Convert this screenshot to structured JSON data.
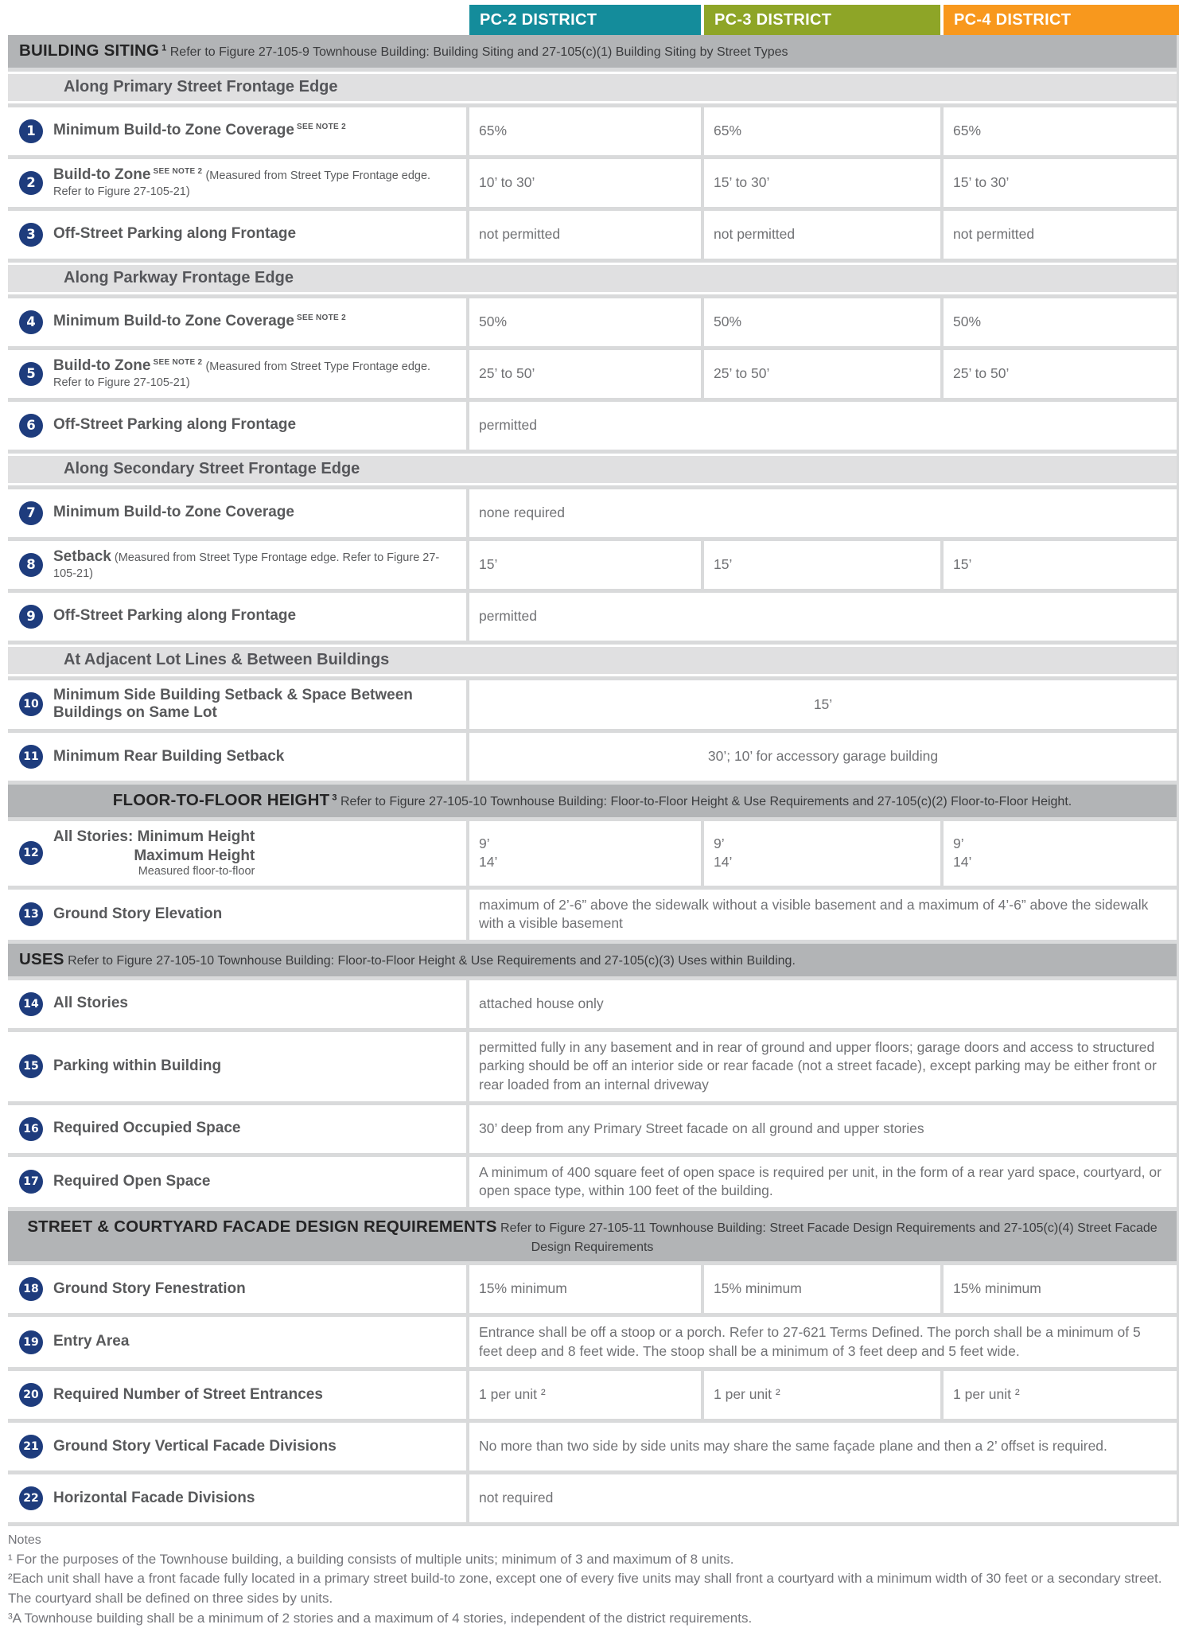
{
  "districts": [
    {
      "label": "PC-2 DISTRICT",
      "color": "#148C9B"
    },
    {
      "label": "PC-3 DISTRICT",
      "color": "#8EA527"
    },
    {
      "label": "PC-4 DISTRICT",
      "color": "#F8981D"
    }
  ],
  "badge_color": "#1E3C7D",
  "sections": [
    {
      "title": "BUILDING SITING",
      "sup": "1",
      "desc": "Refer to Figure 27-105-9 Townhouse Building: Building Siting and 27-105(c)(1) Building Siting by Street Types",
      "band_align": "left",
      "items": [
        {
          "type": "sub",
          "text": "Along Primary Street Frontage Edge"
        },
        {
          "type": "row",
          "num": "1",
          "label": "Minimum Build-to Zone Coverage",
          "label_sup": "SEE NOTE 2",
          "values": [
            "65%",
            "65%",
            "65%"
          ]
        },
        {
          "type": "row",
          "num": "2",
          "label": "Build-to Zone",
          "label_sup": "SEE NOTE 2",
          "paren": "(Measured from Street Type Frontage edge. Refer to Figure 27-105-21)",
          "values": [
            "10’ to 30’",
            "15’ to 30’",
            "15’ to 30’"
          ]
        },
        {
          "type": "row",
          "num": "3",
          "label": "Off-Street Parking along Frontage",
          "values": [
            "not permitted",
            "not permitted",
            "not permitted"
          ]
        },
        {
          "type": "sub",
          "text": "Along Parkway Frontage Edge"
        },
        {
          "type": "row",
          "num": "4",
          "label": "Minimum Build-to Zone Coverage",
          "label_sup": "SEE NOTE 2",
          "values": [
            "50%",
            "50%",
            "50%"
          ]
        },
        {
          "type": "row",
          "num": "5",
          "label": "Build-to Zone",
          "label_sup": "SEE NOTE 2",
          "paren": "(Measured from Street Type Frontage edge. Refer to Figure 27-105-21)",
          "values": [
            "25’ to 50’",
            "25’ to 50’",
            "25’ to 50’"
          ]
        },
        {
          "type": "row",
          "num": "6",
          "label": "Off-Street Parking along Frontage",
          "span": "permitted"
        },
        {
          "type": "sub",
          "text": "Along Secondary Street Frontage Edge"
        },
        {
          "type": "row",
          "num": "7",
          "label": "Minimum Build-to Zone Coverage",
          "span": "none required"
        },
        {
          "type": "row",
          "num": "8",
          "label": "Setback",
          "paren": "(Measured from Street Type Frontage edge. Refer to Figure 27-105-21)",
          "values": [
            "15’",
            "15’",
            "15’"
          ]
        },
        {
          "type": "row",
          "num": "9",
          "label": "Off-Street Parking along Frontage",
          "span": "permitted"
        },
        {
          "type": "sub",
          "text": "At Adjacent Lot Lines & Between Buildings"
        },
        {
          "type": "row",
          "num": "10",
          "label": "Minimum Side Building Setback & Space Between Buildings on Same Lot",
          "span": "15’",
          "span_align": "center"
        },
        {
          "type": "row",
          "num": "11",
          "label": "Minimum Rear Building Setback",
          "span": "30’; 10’ for accessory garage building",
          "span_align": "center"
        }
      ]
    },
    {
      "title": "FLOOR-TO-FLOOR HEIGHT",
      "sup": "3",
      "desc": "Refer to Figure 27-105-10 Townhouse Building: Floor-to-Floor Height & Use Requirements and 27-105(c)(2) Floor-to-Floor Height.",
      "band_align": "center",
      "items": [
        {
          "type": "row",
          "num": "12",
          "label_lines": [
            "All Stories: Minimum Height",
            "Maximum Height"
          ],
          "label_small": "Measured floor-to-floor",
          "values": [
            "9’\n14’",
            "9’\n14’",
            "9’\n14’"
          ]
        },
        {
          "type": "row",
          "num": "13",
          "label": "Ground Story Elevation",
          "span": "maximum of 2’-6” above the sidewalk without a visible basement and a maximum of 4’-6” above the sidewalk with a visible basement"
        }
      ]
    },
    {
      "title": "USES",
      "desc": "Refer to Figure 27-105-10 Townhouse Building: Floor-to-Floor Height & Use Requirements and 27-105(c)(3) Uses within Building.",
      "band_align": "left",
      "items": [
        {
          "type": "row",
          "num": "14",
          "label": "All Stories",
          "span": "attached house only"
        },
        {
          "type": "row",
          "num": "15",
          "label": "Parking within Building",
          "span": "permitted fully in any basement and in rear of ground and upper floors; garage doors and access to structured parking should be off an interior side or rear facade (not a street facade), except parking may be either front or rear loaded from an internal driveway"
        },
        {
          "type": "row",
          "num": "16",
          "label": "Required Occupied Space",
          "span": "30’ deep from any Primary Street facade on all ground and upper stories"
        },
        {
          "type": "row",
          "num": "17",
          "label": "Required Open Space",
          "span": "A minimum of 400 square feet of open space is required per unit, in the form of a rear yard space, courtyard, or open space type, within 100 feet of the building."
        }
      ]
    },
    {
      "title": "STREET & COURTYARD FACADE DESIGN REQUIREMENTS",
      "desc": "Refer to Figure 27-105-11 Townhouse Building: Street Facade Design Requirements and 27-105(c)(4) Street Facade Design Requirements",
      "band_align": "center",
      "items": [
        {
          "type": "row",
          "num": "18",
          "label": "Ground Story Fenestration",
          "values": [
            "15% minimum",
            "15% minimum",
            "15% minimum"
          ]
        },
        {
          "type": "row",
          "num": "19",
          "label": "Entry Area",
          "span": "Entrance shall be off a stoop or a porch. Refer to 27-621 Terms Defined. The porch shall be a minimum of 5 feet deep and 8 feet wide. The stoop shall be a minimum of 3 feet deep and 5 feet wide."
        },
        {
          "type": "row",
          "num": "20",
          "label": "Required Number of Street Entrances",
          "values": [
            "1 per unit ²",
            "1 per unit ²",
            "1 per unit ²"
          ]
        },
        {
          "type": "row",
          "num": "21",
          "label": "Ground Story Vertical Facade Divisions",
          "span": "No more than two side by side units may share the same façade plane and then a 2’ offset is required."
        },
        {
          "type": "row",
          "num": "22",
          "label": "Horizontal Facade Divisions",
          "span": "not required"
        }
      ]
    }
  ],
  "notes": {
    "title": "Notes",
    "items": [
      "¹ For the purposes of the Townhouse building, a building consists of multiple units; minimum of 3 and maximum of 8 units.",
      "²Each unit shall have a front facade fully located in a primary street build-to zone, except one of every five units may shall front a courtyard with a minimum width of 30 feet or a secondary street. The courtyard shall be defined on three sides by units.",
      "³A Townhouse building shall be a minimum of 2 stories and a maximum of 4 stories, independent of the district requirements."
    ]
  }
}
